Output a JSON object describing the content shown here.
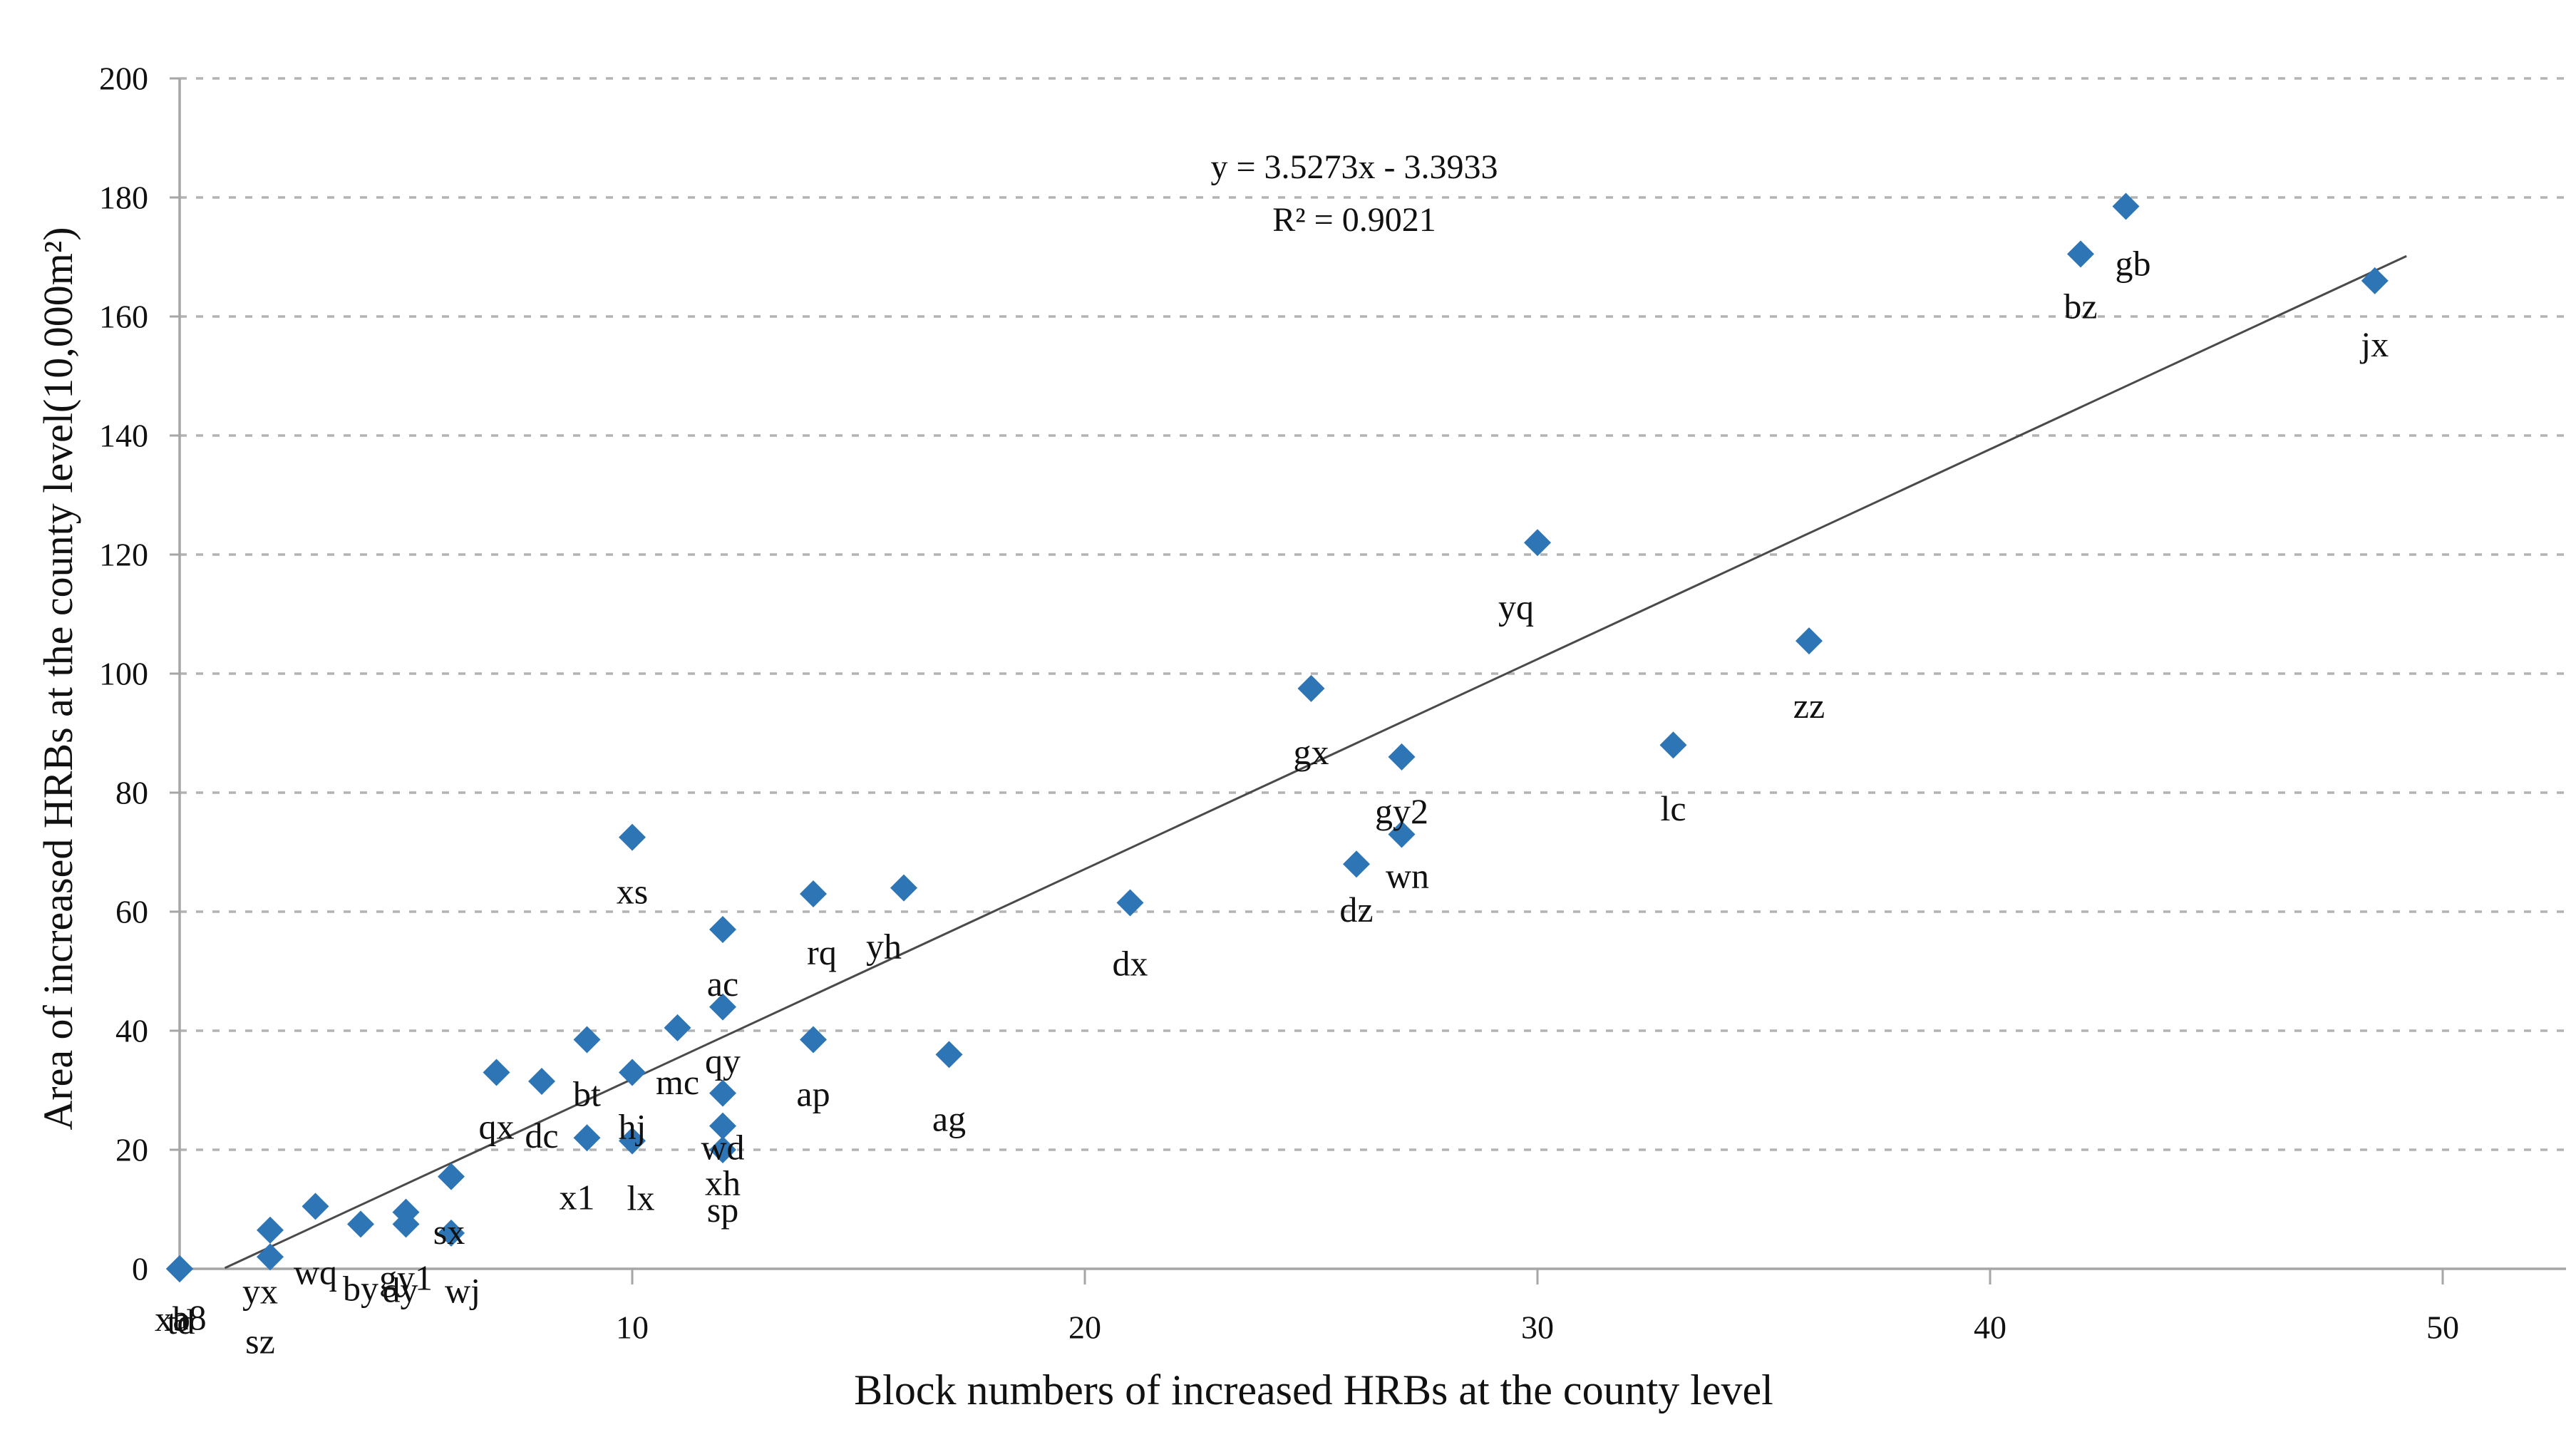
{
  "figure": {
    "equation_line1": "y = 3.5273x - 3.3933",
    "equation_line2": "R² = 0.9021",
    "x_axis_title": "Block numbers of increased HRBs at the county level",
    "y_axis_title": "Area of increased HRBs at the county level(10,000m²)"
  },
  "chart_data": {
    "type": "scatter",
    "title": "",
    "xlabel": "Block numbers of increased HRBs at the county level",
    "ylabel": "Area of increased HRBs at the county level(10,000m²)",
    "xlim": [
      0,
      52.7
    ],
    "ylim": [
      0,
      201
    ],
    "x_ticks": [
      10,
      20,
      30,
      40,
      50
    ],
    "y_ticks": [
      0,
      20,
      40,
      60,
      80,
      100,
      120,
      140,
      160,
      180,
      200
    ],
    "grid": "horizontal-dashed",
    "legend": "none",
    "annotation_lines": [
      "y = 3.5273x - 3.3933",
      "R² = 0.9021"
    ],
    "trendline": {
      "slope": 3.5273,
      "intercept": -3.3933,
      "equation": "y = 3.5273x - 3.3933",
      "r_squared": 0.9021,
      "x_range": [
        1.0,
        49.2
      ],
      "color": "#4a4a4a"
    },
    "marker": {
      "shape": "diamond",
      "color": "#2E75B6",
      "size": 38
    },
    "colors": {
      "marker": "#2E75B6",
      "gridline": "#b3b3b3",
      "axis": "#a6a6a6",
      "text": "#111111",
      "trendline": "#4a4a4a"
    },
    "points": [
      {
        "label": "xb",
        "x": 0,
        "y": 0,
        "lox": -10,
        "loy": 70
      },
      {
        "label": "td",
        "x": 0,
        "y": 0,
        "lox": 2,
        "loy": 74
      },
      {
        "label": "a8",
        "x": 0,
        "y": 0,
        "lox": 14,
        "loy": 68
      },
      {
        "label": "yx",
        "x": 2,
        "y": 6.5,
        "lox": -14,
        "loy": 86
      },
      {
        "label": "sz",
        "x": 2,
        "y": 2,
        "lox": -14,
        "loloy": 0,
        "loy": 118
      },
      {
        "label": "wq",
        "x": 3,
        "y": 10.5,
        "loy": 92
      },
      {
        "label": "by",
        "x": 4,
        "y": 7.5,
        "loy": 90
      },
      {
        "label": "dy",
        "x": 5,
        "y": 9.5,
        "lox": -8,
        "loy": 109
      },
      {
        "label": "gy1",
        "x": 5,
        "y": 7.5,
        "loy": 75
      },
      {
        "label": "wj",
        "x": 6,
        "y": 15.5,
        "lox": 16,
        "loy": 160
      },
      {
        "label": "sx",
        "x": 6,
        "y": 6,
        "lox": -3,
        "loy": -2
      },
      {
        "label": "qx",
        "x": 7,
        "y": 33
      },
      {
        "label": "dc",
        "x": 8,
        "y": 31.5
      },
      {
        "label": "bt",
        "x": 9,
        "y": 38.5
      },
      {
        "label": "x1",
        "x": 9,
        "y": 22,
        "lox": -14,
        "loy": 83
      },
      {
        "label": "hj",
        "x": 10,
        "y": 33
      },
      {
        "label": "lx",
        "x": 10,
        "y": 21.5,
        "lox": 12,
        "loy": 80
      },
      {
        "label": "xs",
        "x": 10,
        "y": 72.5
      },
      {
        "label": "mc",
        "x": 11,
        "y": 40.5
      },
      {
        "label": "ac",
        "x": 12,
        "y": 57
      },
      {
        "label": "qy",
        "x": 12,
        "y": 44
      },
      {
        "label": "wd",
        "x": 12,
        "y": 29.5
      },
      {
        "label": "xh",
        "x": 12,
        "y": 24,
        "loy": 80
      },
      {
        "label": "sp",
        "x": 12,
        "y": 20,
        "loy": 84
      },
      {
        "label": "rq",
        "x": 14,
        "y": 63,
        "lox": 12,
        "loy": 82
      },
      {
        "label": "ap",
        "x": 14,
        "y": 38.5
      },
      {
        "label": "yh",
        "x": 16,
        "y": 64,
        "lox": -28,
        "loy": 82
      },
      {
        "label": "ag",
        "x": 17,
        "y": 36,
        "loy": 90
      },
      {
        "label": "dx",
        "x": 21,
        "y": 61.5,
        "loy": 85
      },
      {
        "label": "gx",
        "x": 25,
        "y": 97.5,
        "loy": 89
      },
      {
        "label": "dz",
        "x": 26,
        "y": 68,
        "loy": 64
      },
      {
        "label": "wn",
        "x": 27,
        "y": 73,
        "lox": 8,
        "loy": 58
      },
      {
        "label": "gy2",
        "x": 27,
        "y": 86
      },
      {
        "label": "yq",
        "x": 30,
        "y": 122,
        "lox": -30,
        "loy": 90
      },
      {
        "label": "lc",
        "x": 33,
        "y": 88,
        "loy": 89
      },
      {
        "label": "zz",
        "x": 36,
        "y": 105.5,
        "loy": 91
      },
      {
        "label": "bz",
        "x": 42,
        "y": 170.5,
        "loy": 73
      },
      {
        "label": "gb",
        "x": 43,
        "y": 178.5,
        "lox": 10,
        "loy": 80
      },
      {
        "label": "jx",
        "x": 48.5,
        "y": 166,
        "loy": 89
      }
    ],
    "layout": {
      "x0": 252,
      "pxx": 63.5,
      "y0": 1780,
      "pxy": 8.35,
      "plot_right": 3600,
      "tick_font": 46,
      "label_font": 50,
      "default_label_offset": [
        0,
        76
      ]
    }
  }
}
